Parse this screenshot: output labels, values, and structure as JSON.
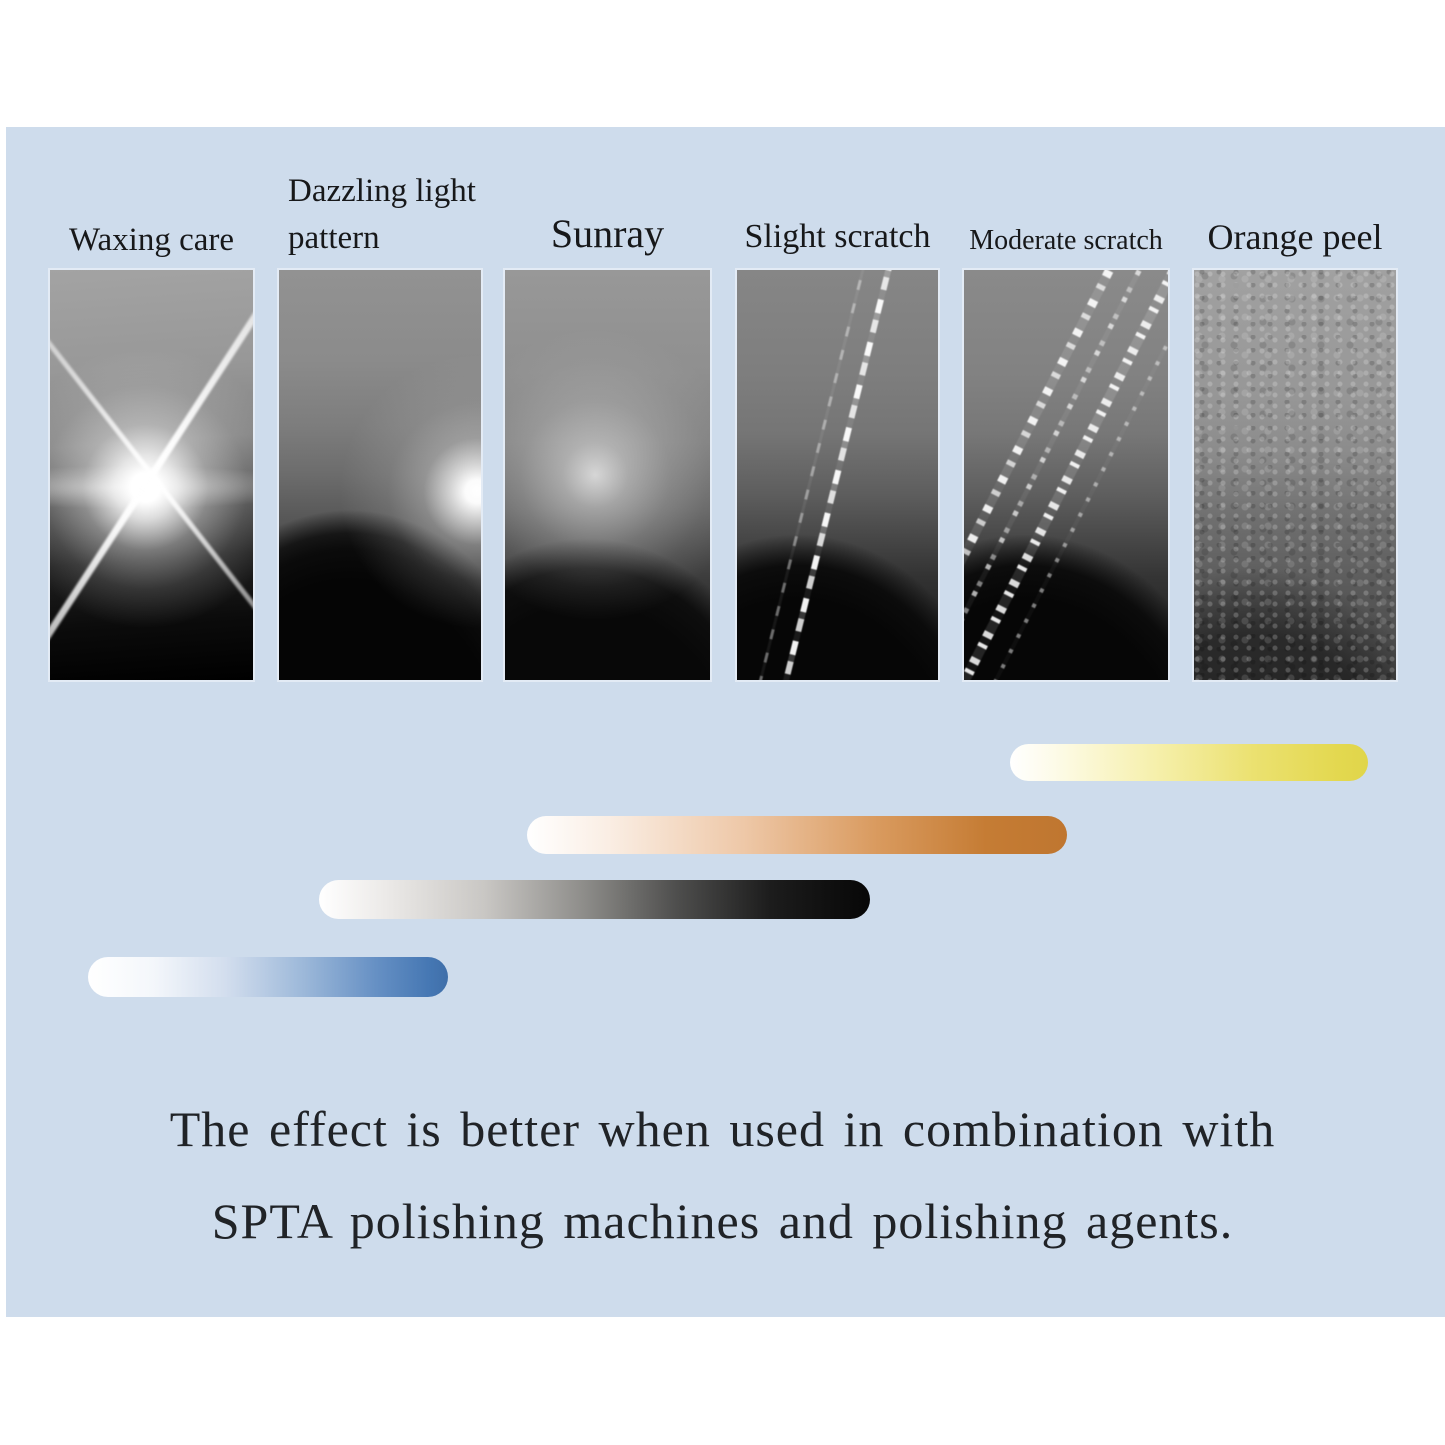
{
  "colors": {
    "page_background": "#ffffff",
    "canvas_background": "#cedcec",
    "text": "#17181a",
    "bar_yellow_end": "#e0d54a",
    "bar_orange_end": "#bf7630",
    "bar_black_end": "#070707",
    "bar_blue_end": "#406fa9"
  },
  "panels": [
    {
      "id": "waxing-care",
      "label": "Waxing care"
    },
    {
      "id": "dazzling-light-pattern",
      "label_line1": "Dazzling light",
      "label_line2": "pattern"
    },
    {
      "id": "sunray",
      "label": "Sunray"
    },
    {
      "id": "slight-scratch",
      "label": "Slight scratch"
    },
    {
      "id": "moderate-scratch",
      "label": "Moderate scratch"
    },
    {
      "id": "orange-peel",
      "label": "Orange peel"
    }
  ],
  "legend_bars": [
    {
      "id": "yellow",
      "gradient": "white to yellow"
    },
    {
      "id": "orange",
      "gradient": "white to orange"
    },
    {
      "id": "black",
      "gradient": "white to black"
    },
    {
      "id": "blue",
      "gradient": "white to blue"
    }
  ],
  "caption": {
    "line1": "The effect is better when used in combination with",
    "line2": "SPTA polishing machines and polishing agents."
  }
}
